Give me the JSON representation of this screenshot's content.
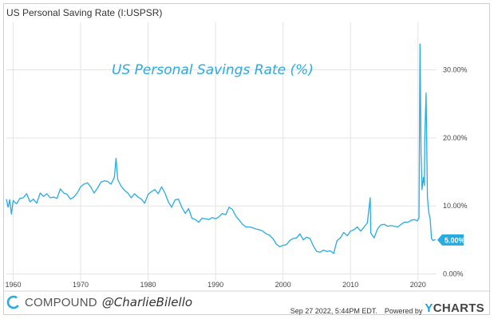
{
  "header": {
    "title": "US Personal Saving Rate (I:USPSR)"
  },
  "chart_data": {
    "type": "line",
    "title": "US Personal Savings Rate (%)",
    "xlabel": "",
    "ylabel": "",
    "xlim": [
      1959,
      2022.75
    ],
    "ylim": [
      -1,
      37
    ],
    "x_ticks": [
      "1960",
      "1970",
      "1980",
      "1990",
      "2000",
      "2010",
      "2020"
    ],
    "y_ticks": [
      "0.00%",
      "10.00%",
      "20.00%",
      "30.00%"
    ],
    "last_value_label": "5.00%",
    "grid": true,
    "line_color": "#29abe2",
    "series": [
      {
        "x": [
          1959.0,
          1959.25,
          1959.5,
          1959.75,
          1960.0,
          1960.5,
          1961.0,
          1961.5,
          1962.0,
          1962.5,
          1963.0,
          1963.5,
          1964.0,
          1964.5,
          1965.0,
          1965.5,
          1966.0,
          1966.5,
          1967.0,
          1967.5,
          1968.0,
          1968.5,
          1969.0,
          1969.5,
          1970.0,
          1970.5,
          1971.0,
          1971.5,
          1972.0,
          1972.5,
          1973.0,
          1973.5,
          1974.0,
          1974.5,
          1975.0,
          1975.25,
          1975.5,
          1976.0,
          1976.5,
          1977.0,
          1977.5,
          1978.0,
          1978.5,
          1979.0,
          1979.5,
          1980.0,
          1980.5,
          1981.0,
          1981.5,
          1982.0,
          1982.5,
          1983.0,
          1983.5,
          1984.0,
          1984.5,
          1985.0,
          1985.5,
          1986.0,
          1986.5,
          1987.0,
          1987.5,
          1988.0,
          1988.5,
          1989.0,
          1989.5,
          1990.0,
          1990.5,
          1991.0,
          1991.5,
          1992.0,
          1992.5,
          1993.0,
          1993.5,
          1994.0,
          1994.5,
          1995.0,
          1995.5,
          1996.0,
          1996.5,
          1997.0,
          1997.5,
          1998.0,
          1998.5,
          1999.0,
          1999.5,
          2000.0,
          2000.5,
          2001.0,
          2001.5,
          2002.0,
          2002.5,
          2003.0,
          2003.5,
          2004.0,
          2004.5,
          2005.0,
          2005.5,
          2006.0,
          2006.5,
          2007.0,
          2007.5,
          2008.0,
          2008.5,
          2009.0,
          2009.5,
          2010.0,
          2010.5,
          2011.0,
          2011.5,
          2012.0,
          2012.5,
          2012.92,
          2013.0,
          2013.5,
          2014.0,
          2014.5,
          2015.0,
          2015.5,
          2016.0,
          2016.5,
          2017.0,
          2017.5,
          2018.0,
          2018.5,
          2019.0,
          2019.5,
          2019.9,
          2020.0,
          2020.15,
          2020.3,
          2020.45,
          2020.6,
          2020.8,
          2020.95,
          2021.0,
          2021.2,
          2021.4,
          2021.6,
          2021.8,
          2022.0,
          2022.2,
          2022.4,
          2022.6
        ],
        "values": [
          11.0,
          9.8,
          10.9,
          8.8,
          10.8,
          10.3,
          11.1,
          11.2,
          11.8,
          10.6,
          11.0,
          10.4,
          11.9,
          11.4,
          11.8,
          11.2,
          11.3,
          11.1,
          12.5,
          11.9,
          11.7,
          11.0,
          11.3,
          11.9,
          12.8,
          13.2,
          13.4,
          12.8,
          11.9,
          12.6,
          13.5,
          13.7,
          13.6,
          13.2,
          14.2,
          17.0,
          13.9,
          12.9,
          12.3,
          11.9,
          11.2,
          11.8,
          11.3,
          11.0,
          10.4,
          11.7,
          12.1,
          12.4,
          11.8,
          12.8,
          11.9,
          10.6,
          9.8,
          10.9,
          11.0,
          9.8,
          8.9,
          9.6,
          8.2,
          8.0,
          7.6,
          8.2,
          8.1,
          8.0,
          8.3,
          8.1,
          8.4,
          8.9,
          8.7,
          9.8,
          9.5,
          8.5,
          7.9,
          7.3,
          6.9,
          6.9,
          6.8,
          6.6,
          6.5,
          6.3,
          5.9,
          5.7,
          5.2,
          4.4,
          4.0,
          4.2,
          4.3,
          4.9,
          5.2,
          5.3,
          5.9,
          5.0,
          5.4,
          5.2,
          4.1,
          3.3,
          3.2,
          3.5,
          3.3,
          3.4,
          3.0,
          4.9,
          5.3,
          6.1,
          5.6,
          6.3,
          6.5,
          6.9,
          6.3,
          6.9,
          7.5,
          11.2,
          6.0,
          5.3,
          6.6,
          7.2,
          7.3,
          7.0,
          7.1,
          7.0,
          6.9,
          7.3,
          7.6,
          7.6,
          7.9,
          8.0,
          7.8,
          8.0,
          8.2,
          33.8,
          17.7,
          12.4,
          14.2,
          13.0,
          19.8,
          26.6,
          11.2,
          9.0,
          8.1,
          5.2,
          4.9,
          5.0,
          5.0
        ]
      }
    ]
  },
  "footer": {
    "brand": "COMPOUND",
    "handle": "@CharlieBilello",
    "date": "Sep 27 2022, 5:44PM EDT.",
    "powered": "Powered by",
    "ycharts_y": "Y",
    "ycharts_rest": "CHARTS"
  }
}
